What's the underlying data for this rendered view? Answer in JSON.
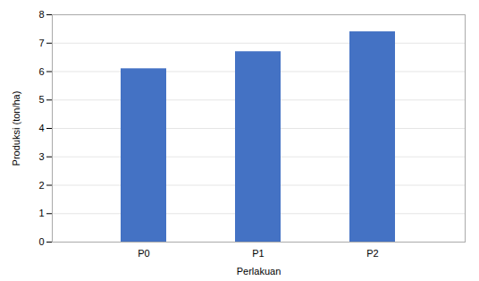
{
  "chart_data": {
    "type": "bar",
    "categories": [
      "P0",
      "P1",
      "P2"
    ],
    "values": [
      6.1,
      6.7,
      7.4
    ],
    "color": "#4472C4",
    "xlabel": "Perlakuan",
    "ylabel": "Produksi (ton/ha)",
    "ylim": [
      0,
      8
    ],
    "yticks": [
      0,
      1,
      2,
      3,
      4,
      5,
      6,
      7,
      8
    ],
    "grid": true
  }
}
